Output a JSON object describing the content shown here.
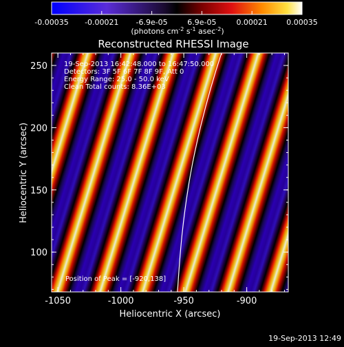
{
  "colorbar": {
    "ticks": [
      "-0.00035",
      "-0.00021",
      "-6.9e-05",
      "6.9e-05",
      "0.00021",
      "0.00035"
    ],
    "units_prefix": "(photons cm",
    "units_exp1": "-2",
    "units_mid": " s",
    "units_exp2": "-1",
    "units_mid2": " asec",
    "units_exp3": "-2",
    "units_suffix": ")"
  },
  "title": "Reconstructed RHESSI Image",
  "annotations": {
    "time_range": "19-Sep-2013 16:42:48.000 to 16:47:50.000",
    "detectors": "Detectors: 3F 5F 6F 7F 8F 9F, Att 0",
    "energy": "Energy Range: 25.0 - 50.0 keV",
    "method": "Clean     Total counts: 8.36E+03",
    "peak": "Position of Peak = [-920,138]"
  },
  "axes": {
    "xlabel": "Heliocentric X (arcsec)",
    "ylabel": "Heliocentric Y (arcsec)",
    "xticks": [
      {
        "label": "-1050",
        "value": -1050
      },
      {
        "label": "-1000",
        "value": -1000
      },
      {
        "label": "-950",
        "value": -950
      },
      {
        "label": "-900",
        "value": -900
      }
    ],
    "yticks": [
      {
        "label": "100",
        "value": 100
      },
      {
        "label": "150",
        "value": 150
      },
      {
        "label": "200",
        "value": 200
      },
      {
        "label": "250",
        "value": 250
      }
    ],
    "xrange": [
      -1055,
      -867
    ],
    "yrange": [
      68,
      260
    ]
  },
  "footer_timestamp": "19-Sep-2013 12:49"
}
